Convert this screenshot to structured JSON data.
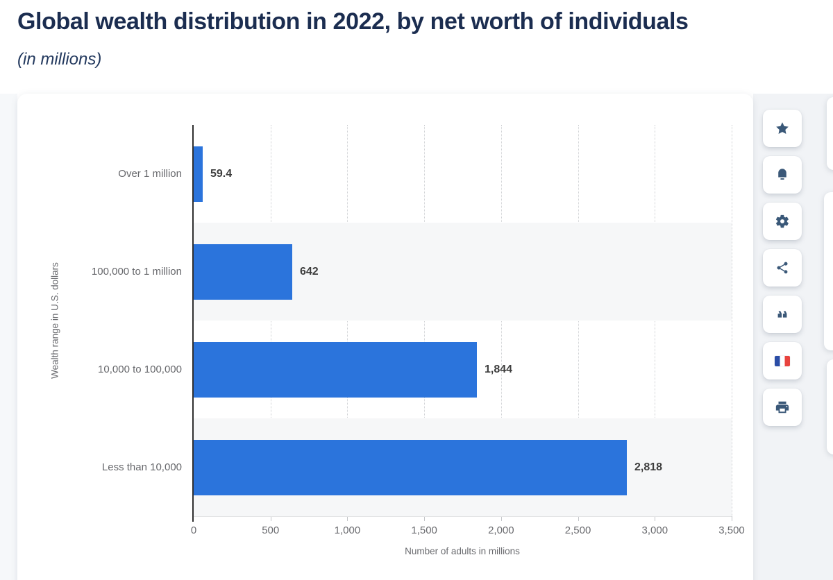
{
  "header": {
    "title": "Global wealth distribution in 2022, by net worth of individuals",
    "subtitle": "(in millions)"
  },
  "chart_data": {
    "type": "bar",
    "orientation": "horizontal",
    "title": "Global wealth distribution in 2022, by net worth of individuals",
    "subtitle": "(in millions)",
    "categories": [
      "Over 1 million",
      "100,000 to 1 million",
      "10,000 to 100,000",
      "Less than 10,000"
    ],
    "values": [
      59.4,
      642,
      1844,
      2818
    ],
    "value_labels": [
      "59.4",
      "642",
      "1,844",
      "2,818"
    ],
    "xlabel": "Number of adults in millions",
    "ylabel": "Wealth range in U.S. dollars",
    "xlim": [
      0,
      3500
    ],
    "xticks": [
      0,
      500,
      1000,
      1500,
      2000,
      2500,
      3000,
      3500
    ],
    "xtick_labels": [
      "0",
      "500",
      "1,000",
      "1,500",
      "2,000",
      "2,500",
      "3,000",
      "3,500"
    ],
    "grid": "vertical-dotted",
    "legend": "none",
    "bar_color": "#2b74dc",
    "band_color": "#f6f7f8"
  },
  "toolbar": {
    "items": [
      {
        "name": "favorite",
        "icon": "star-icon"
      },
      {
        "name": "alerts",
        "icon": "bell-icon"
      },
      {
        "name": "settings",
        "icon": "gear-icon"
      },
      {
        "name": "share",
        "icon": "share-icon"
      },
      {
        "name": "cite",
        "icon": "quote-icon"
      },
      {
        "name": "language-french",
        "icon": "french-flag-icon"
      },
      {
        "name": "print",
        "icon": "printer-icon"
      }
    ]
  },
  "colors": {
    "title": "#1b2d50",
    "bar": "#2b74dc",
    "band": "#f6f7f8",
    "icon": "#3a5878",
    "axis_line": "#2f2f2f",
    "flag_blue": "#2b4da6",
    "flag_red": "#e8433e"
  }
}
